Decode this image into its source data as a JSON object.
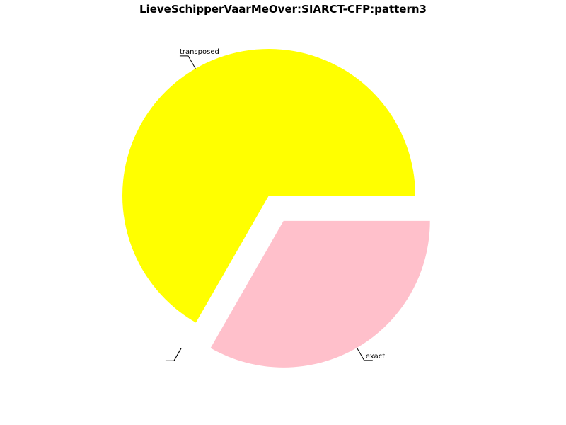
{
  "chart_data": {
    "type": "pie",
    "title": "LieveSchipperVaarMeOver:SIARCT-CFP:pattern3",
    "start_angle_deg": 0,
    "direction": "counterclockwise",
    "slices": [
      {
        "label": "transposed",
        "value": 66.7,
        "color": "#ffff00",
        "exploded": false
      },
      {
        "label": "",
        "value": 0.0,
        "color": "#ffffff",
        "exploded": true
      },
      {
        "label": "",
        "value": 0.0,
        "color": "#ffffff",
        "exploded": true
      },
      {
        "label": "exact",
        "value": 33.3,
        "color": "#ffc0cb",
        "exploded": true
      }
    ]
  }
}
